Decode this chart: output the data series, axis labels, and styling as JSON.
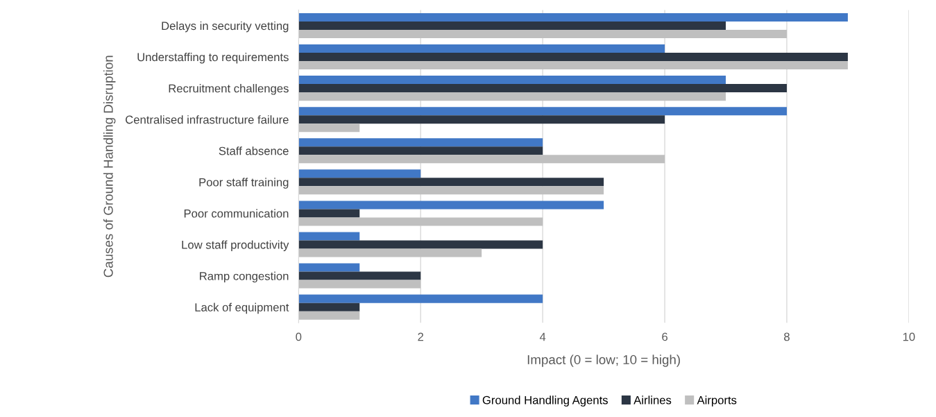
{
  "chart_data": {
    "type": "bar",
    "orientation": "horizontal",
    "xlabel": "Impact (0 = low; 10 = high)",
    "ylabel": "Causes of Ground Handling Disruption",
    "categories": [
      "Delays in security vetting",
      "Understaffing to requirements",
      "Recruitment challenges",
      "Centralised infrastructure failure",
      "Staff absence",
      "Poor staff training",
      "Poor communication",
      "Low staff productivity",
      "Ramp congestion",
      "Lack of equipment"
    ],
    "series": [
      {
        "name": "Ground Handling Agents",
        "color": "#4178c6",
        "values": [
          9,
          6,
          7,
          8,
          4,
          2,
          5,
          1,
          1,
          4
        ]
      },
      {
        "name": "Airlines",
        "color": "#2c3644",
        "values": [
          7,
          9,
          8,
          6,
          4,
          5,
          1,
          4,
          2,
          1
        ]
      },
      {
        "name": "Airports",
        "color": "#bfbfbf",
        "values": [
          8,
          9,
          7,
          1,
          6,
          5,
          4,
          3,
          2,
          1
        ]
      }
    ],
    "xlim": [
      0,
      10
    ],
    "xticks": [
      0,
      2,
      4,
      6,
      8,
      10
    ],
    "grid": "x",
    "legend": "bottom"
  }
}
